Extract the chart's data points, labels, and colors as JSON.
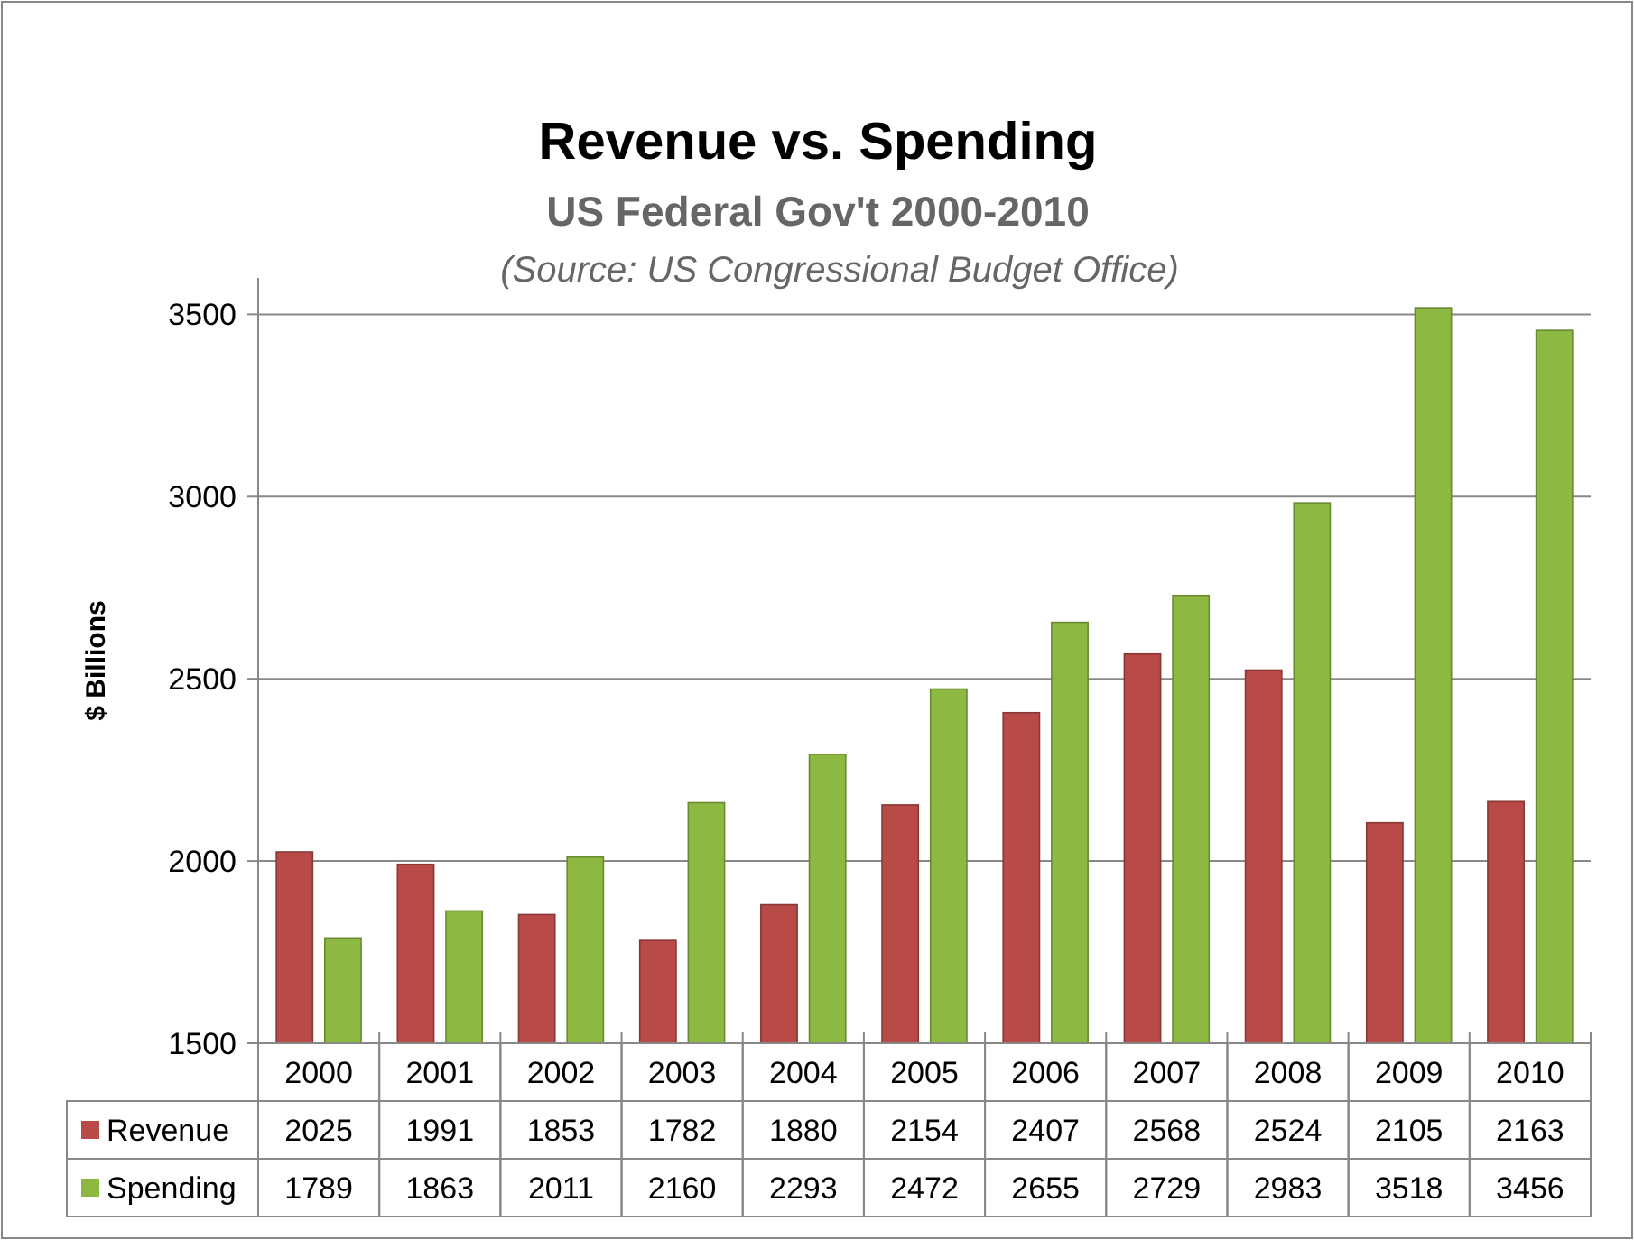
{
  "chart_data": {
    "type": "bar",
    "title": "Revenue vs. Spending",
    "subtitle": "US Federal Gov't 2000-2010",
    "annotations": [
      "(Source: US Congressional Budget Office)"
    ],
    "ylabel": "$ Billions",
    "categories": [
      "2000",
      "2001",
      "2002",
      "2003",
      "2004",
      "2005",
      "2006",
      "2007",
      "2008",
      "2009",
      "2010"
    ],
    "series": [
      {
        "name": "Revenue",
        "color": "#b84a48",
        "values": [
          2025,
          1991,
          1853,
          1782,
          1880,
          2154,
          2407,
          2568,
          2524,
          2105,
          2163
        ]
      },
      {
        "name": "Spending",
        "color": "#8db842",
        "values": [
          1789,
          1863,
          2011,
          2160,
          2293,
          2472,
          2655,
          2729,
          2983,
          3518,
          3456
        ]
      }
    ],
    "ylim": [
      1500,
      3600
    ],
    "yticks": [
      1500,
      2000,
      2500,
      3000,
      3500
    ],
    "grid": "y",
    "legend": "bottom",
    "data_labels": true
  }
}
